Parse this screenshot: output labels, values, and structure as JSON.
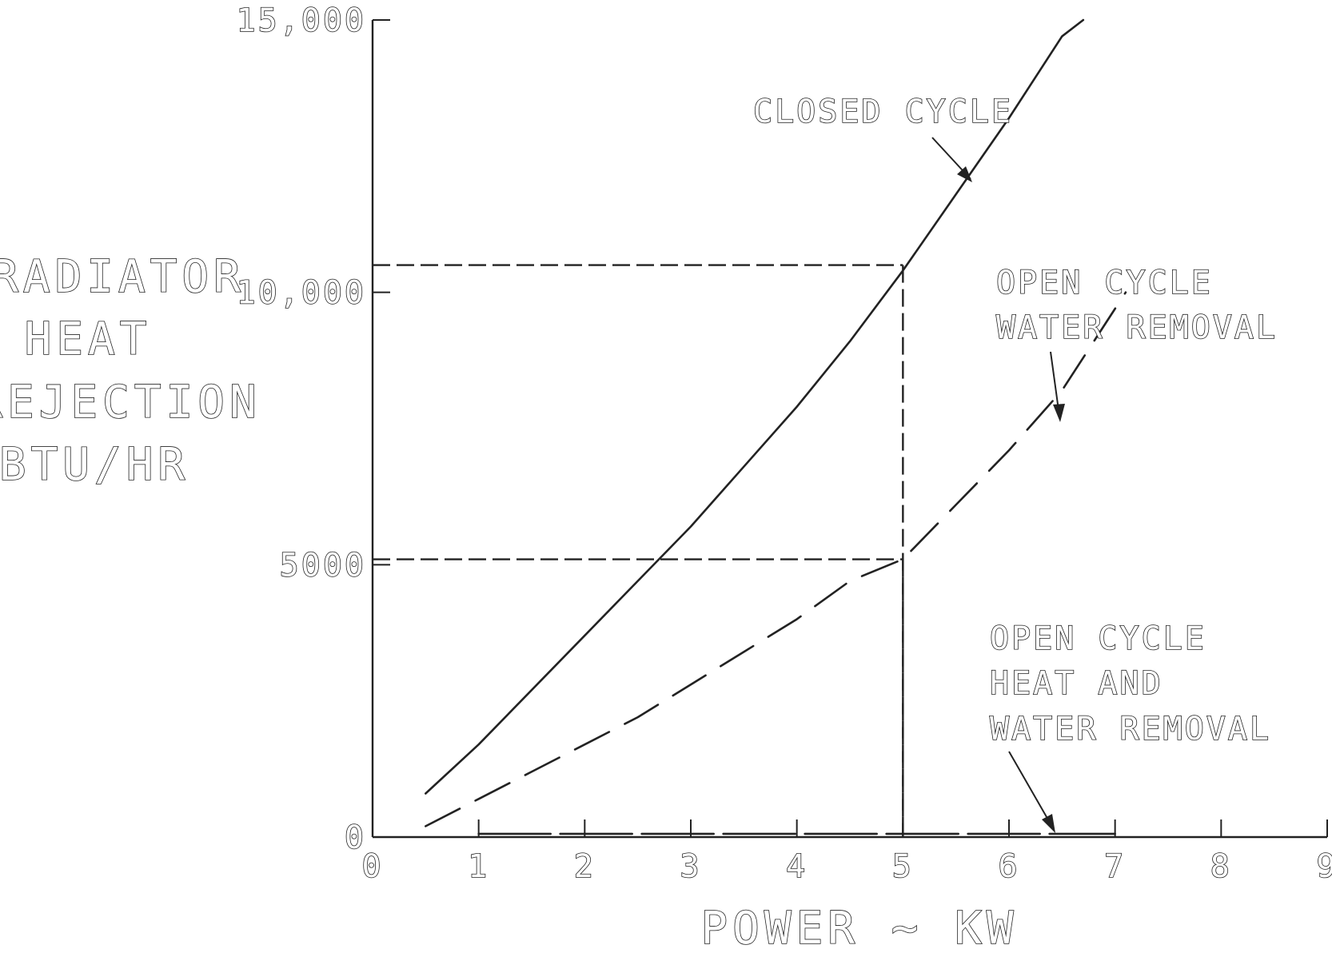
{
  "chart_data": {
    "type": "line",
    "xlabel": "POWER ~ KW",
    "ylabel_lines": [
      "RADIATOR",
      "HEAT",
      "REJECTION",
      "BTU/HR"
    ],
    "xlim": [
      0,
      9
    ],
    "ylim": [
      0,
      15000
    ],
    "x_ticks": [
      "0",
      "1",
      "2",
      "3",
      "4",
      "5",
      "6",
      "7",
      "8",
      "9"
    ],
    "y_ticks": [
      {
        "value": 0,
        "label": "0"
      },
      {
        "value": 5000,
        "label": "5000"
      },
      {
        "value": 10000,
        "label": "10,000"
      },
      {
        "value": 15000,
        "label": "15,000"
      }
    ],
    "grid": false,
    "series": [
      {
        "name": "CLOSED CYCLE",
        "style": "solid",
        "x": [
          0.5,
          1,
          1.5,
          2,
          2.5,
          3,
          3.5,
          4,
          4.5,
          5,
          5.5,
          6,
          6.5,
          6.7
        ],
        "y": [
          800,
          1700,
          2700,
          3700,
          4700,
          5700,
          6800,
          7900,
          9100,
          10400,
          11800,
          13200,
          14700,
          15000
        ]
      },
      {
        "name": "OPEN CYCLE WATER REMOVAL",
        "style": "dashed",
        "x": [
          0.5,
          1,
          1.5,
          2,
          2.5,
          3,
          3.5,
          4,
          4.5,
          5,
          5.5,
          6,
          6.5,
          7.1
        ],
        "y": [
          200,
          700,
          1200,
          1700,
          2200,
          2800,
          3400,
          4000,
          4700,
          5100,
          6100,
          7100,
          8200,
          10000
        ]
      },
      {
        "name": "OPEN CYCLE HEAT AND WATER REMOVAL",
        "style": "dashed",
        "x": [
          1,
          7
        ],
        "y": [
          60,
          60
        ]
      }
    ],
    "annotations": [
      {
        "lines": [
          "CLOSED CYCLE"
        ]
      },
      {
        "lines": [
          "OPEN CYCLE",
          "WATER REMOVAL"
        ]
      },
      {
        "lines": [
          "OPEN CYCLE",
          "HEAT AND",
          "WATER REMOVAL"
        ]
      }
    ],
    "reference_lines": [
      {
        "x": 5,
        "y": 10500
      },
      {
        "x": 5,
        "y": 5100
      }
    ],
    "colors": {
      "ink": "#222222",
      "background": "#ffffff"
    }
  }
}
